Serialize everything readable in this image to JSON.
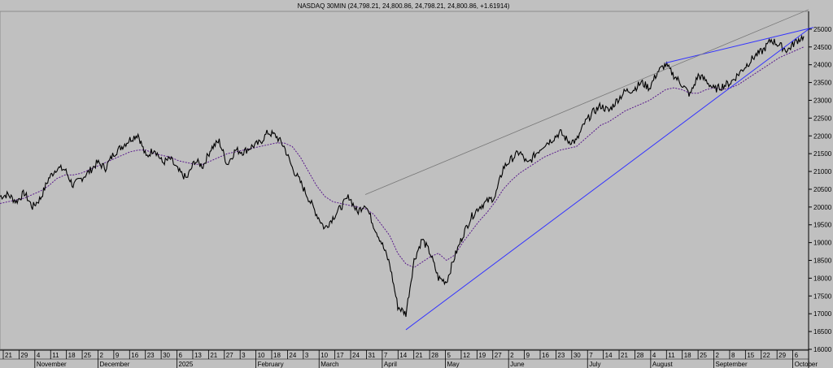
{
  "chart_data": {
    "type": "line",
    "title": "NASDAQ 30MIN (24,798.21, 24,800.86, 24,798.21, 24,800.86, +1.61914)",
    "ylim": [
      16000,
      25500
    ],
    "y_ticks": [
      16000,
      16500,
      17000,
      17500,
      18000,
      18500,
      19000,
      19500,
      20000,
      20500,
      21000,
      21500,
      22000,
      22500,
      23000,
      23500,
      24000,
      24500,
      25000
    ],
    "y_tick_labels": [
      "16000",
      "16500",
      "17000",
      "17500",
      "18000",
      "18500",
      "19000",
      "19500",
      "20000",
      "20500",
      "21000",
      "21500",
      "22000",
      "22500",
      "23000",
      "23500",
      "24000",
      "24500",
      "25000"
    ],
    "day_ticks": [
      "21",
      "29",
      "4",
      "11",
      "18",
      "25",
      "2",
      "9",
      "16",
      "23",
      "30",
      "6",
      "13",
      "21",
      "27",
      "3",
      "10",
      "18",
      "24",
      "3",
      "10",
      "17",
      "24",
      "31",
      "7",
      "14",
      "21",
      "28",
      "5",
      "12",
      "19",
      "27",
      "2",
      "9",
      "16",
      "23",
      "30",
      "7",
      "14",
      "21",
      "28",
      "4",
      "11",
      "18",
      "25",
      "2",
      "8",
      "15",
      "22",
      "29",
      "6"
    ],
    "month_labels": [
      "November",
      "December",
      "2025",
      "February",
      "March",
      "April",
      "May",
      "June",
      "July",
      "August",
      "September",
      "October"
    ],
    "series": [
      {
        "values": [
          20300,
          20350,
          20150,
          20400,
          20000,
          20250,
          20800,
          21100,
          21050,
          20600,
          20800,
          21000,
          21250,
          21100,
          21500,
          21700,
          21900,
          22050,
          21400,
          21650,
          21250,
          21350,
          21000,
          20800,
          21300,
          21150,
          21650,
          21850,
          21200,
          21600,
          21550,
          21700,
          21800,
          22100,
          22000,
          21700,
          21100,
          20700,
          20250,
          19800,
          19400,
          19700,
          20000,
          20300,
          19850,
          20100,
          19500,
          19000,
          18400,
          17200,
          17000,
          18500,
          19100,
          18700,
          18000,
          17900,
          18600,
          19200,
          19700,
          20000,
          20150,
          20300,
          21100,
          21350,
          21550,
          21200,
          21500,
          21750,
          21900,
          22100,
          21850,
          21850,
          22350,
          22650,
          22850,
          22700,
          23000,
          23250,
          23300,
          23500,
          23350,
          23800,
          24000,
          23700,
          23450,
          23150,
          23700,
          23550,
          23300,
          23400,
          23500,
          23750,
          24000,
          24250,
          24400,
          24700,
          24550,
          24400,
          24650,
          24800
        ]
      },
      {
        "values": [
          20100,
          20150,
          20200,
          20250,
          20350,
          20450,
          20600,
          20800,
          20900,
          20900,
          20950,
          21050,
          21150,
          21250,
          21350,
          21450,
          21550,
          21600,
          21600,
          21500,
          21450,
          21400,
          21300,
          21250,
          21200,
          21200,
          21300,
          21400,
          21500,
          21550,
          21600,
          21650,
          21700,
          21750,
          21800,
          21800,
          21700,
          21400,
          21000,
          20600,
          20300,
          20150,
          20100,
          20050,
          20000,
          19950,
          19800,
          19500,
          19200,
          18700,
          18400,
          18300,
          18450,
          18600,
          18700,
          18500,
          18650,
          19000,
          19300,
          19600,
          19850,
          20150,
          20500,
          20750,
          20950,
          21100,
          21250,
          21400,
          21500,
          21600,
          21650,
          21700,
          21900,
          22100,
          22300,
          22400,
          22550,
          22700,
          22800,
          22900,
          23000,
          23150,
          23300,
          23350,
          23300,
          23200,
          23200,
          23300,
          23350,
          23300,
          23350,
          23450,
          23600,
          23750,
          23900,
          24050,
          24200,
          24300,
          24400,
          24500
        ]
      }
    ],
    "colors": {
      "price": "#000000",
      "moving_average": "#5a1a8c",
      "trendline": "#3333ff",
      "channel_line": "#777777",
      "grid": "#8c8c8c",
      "background": "#c0c0c0"
    },
    "grid": true
  }
}
